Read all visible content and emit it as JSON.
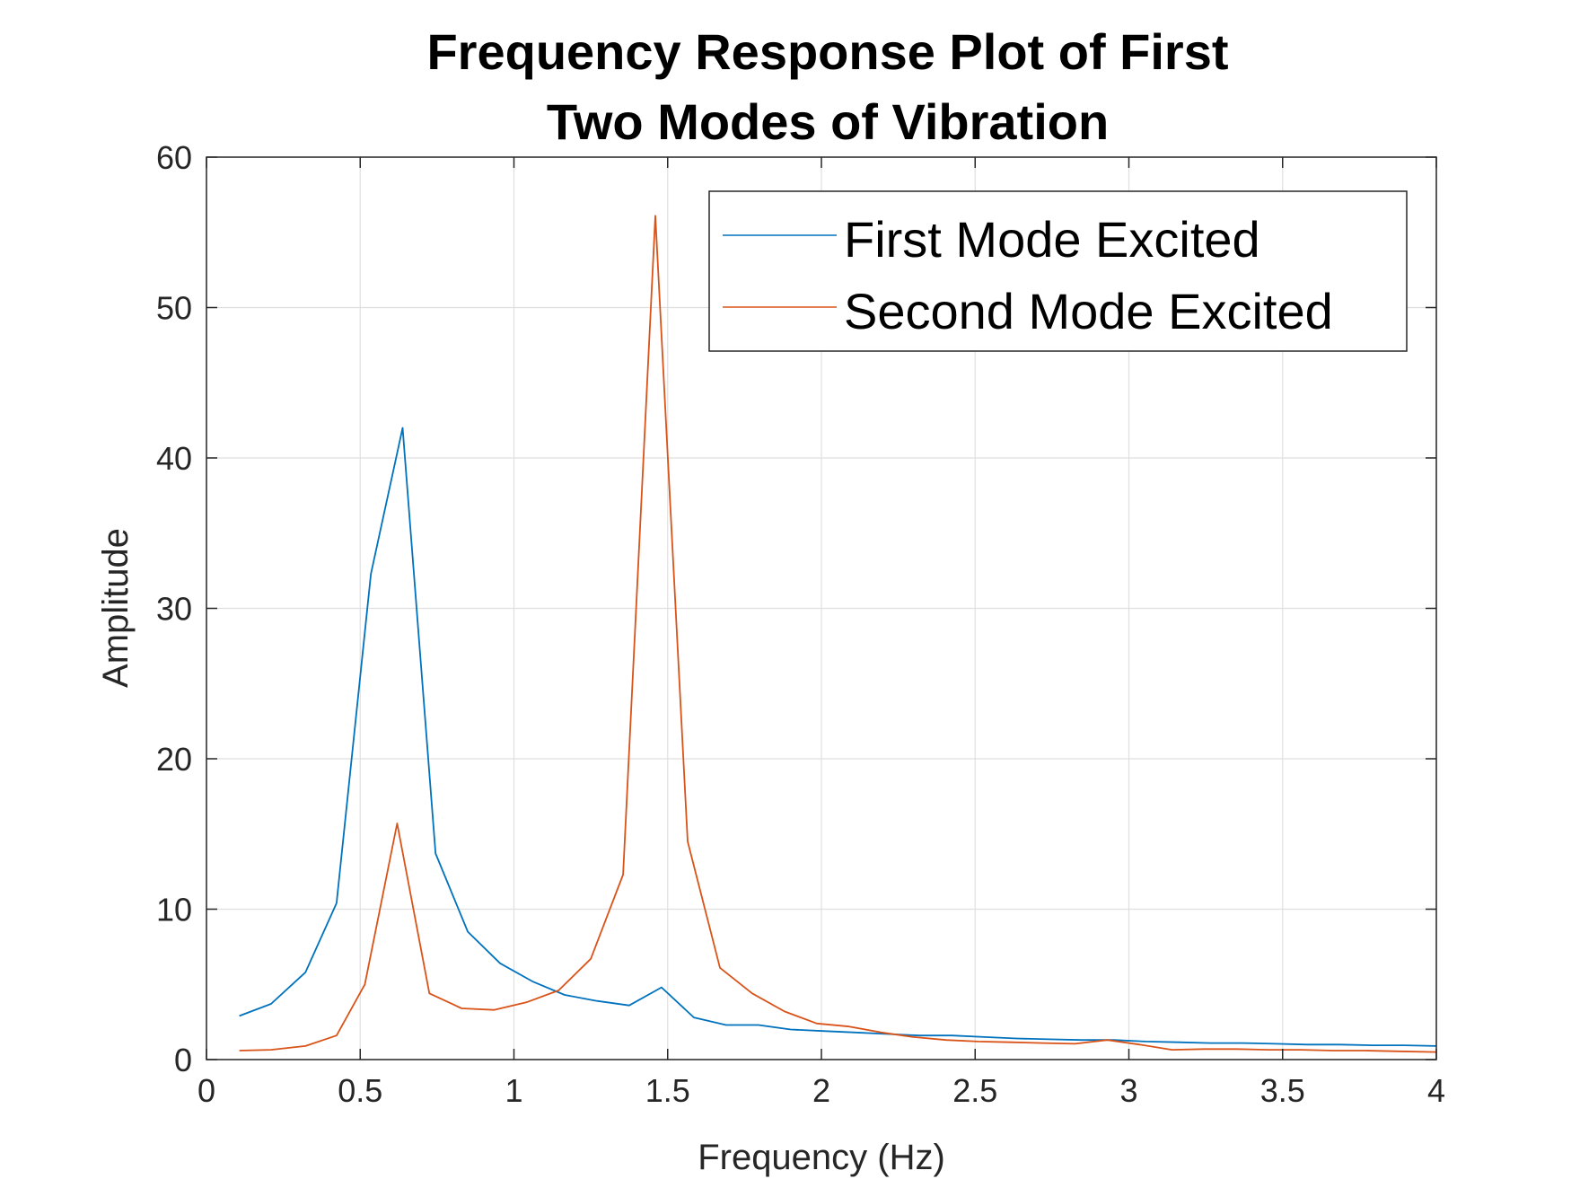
{
  "chart_data": {
    "type": "line",
    "title": [
      "Frequency Response Plot of First",
      "Two Modes of Vibration"
    ],
    "xlabel": "Frequency (Hz)",
    "ylabel": "Amplitude",
    "xlim": [
      0,
      4
    ],
    "ylim": [
      0,
      60
    ],
    "xticks": [
      0,
      0.5,
      1,
      1.5,
      2,
      2.5,
      3,
      3.5,
      4
    ],
    "xtick_labels": [
      "0",
      "0.5",
      "1",
      "1.5",
      "2",
      "2.5",
      "3",
      "3.5",
      "4"
    ],
    "yticks": [
      0,
      10,
      20,
      30,
      40,
      50,
      60
    ],
    "ytick_labels": [
      "0",
      "10",
      "20",
      "30",
      "40",
      "50",
      "60"
    ],
    "grid": true,
    "legend_position": "top-right",
    "series": [
      {
        "name": "First Mode Excited",
        "color": "#0072BD",
        "x": [
          0.107,
          0.21,
          0.322,
          0.423,
          0.535,
          0.638,
          0.745,
          0.85,
          0.955,
          1.06,
          1.165,
          1.27,
          1.375,
          1.48,
          1.585,
          1.69,
          1.795,
          1.9,
          2.005,
          2.11,
          2.215,
          2.32,
          2.425,
          2.53,
          2.635,
          2.74,
          2.845,
          2.95,
          3.055,
          3.16,
          3.265,
          3.37,
          3.475,
          3.58,
          3.685,
          3.79,
          3.895,
          4.0
        ],
        "y": [
          2.9,
          3.7,
          5.8,
          10.4,
          32.3,
          42.0,
          13.7,
          8.5,
          6.4,
          5.2,
          4.3,
          3.9,
          3.6,
          4.8,
          2.8,
          2.3,
          2.3,
          2.0,
          1.9,
          1.8,
          1.7,
          1.6,
          1.6,
          1.5,
          1.4,
          1.35,
          1.3,
          1.3,
          1.2,
          1.15,
          1.1,
          1.1,
          1.05,
          1.0,
          1.0,
          0.95,
          0.95,
          0.9
        ]
      },
      {
        "name": "Second Mode Excited",
        "color": "#D95319",
        "x": [
          0.107,
          0.21,
          0.322,
          0.423,
          0.515,
          0.62,
          0.725,
          0.83,
          0.935,
          1.04,
          1.145,
          1.25,
          1.355,
          1.46,
          1.565,
          1.67,
          1.775,
          1.88,
          1.985,
          2.09,
          2.195,
          2.3,
          2.405,
          2.51,
          2.615,
          2.72,
          2.825,
          2.93,
          3.035,
          3.14,
          3.245,
          3.35,
          3.455,
          3.56,
          3.665,
          3.77,
          3.875,
          4.0
        ],
        "y": [
          0.6,
          0.65,
          0.9,
          1.6,
          5.0,
          15.7,
          4.4,
          3.4,
          3.3,
          3.8,
          4.6,
          6.7,
          12.3,
          56.1,
          14.5,
          6.1,
          4.4,
          3.2,
          2.4,
          2.2,
          1.8,
          1.5,
          1.3,
          1.2,
          1.15,
          1.1,
          1.05,
          1.3,
          1.0,
          0.65,
          0.7,
          0.7,
          0.65,
          0.65,
          0.6,
          0.6,
          0.55,
          0.5
        ]
      }
    ]
  }
}
